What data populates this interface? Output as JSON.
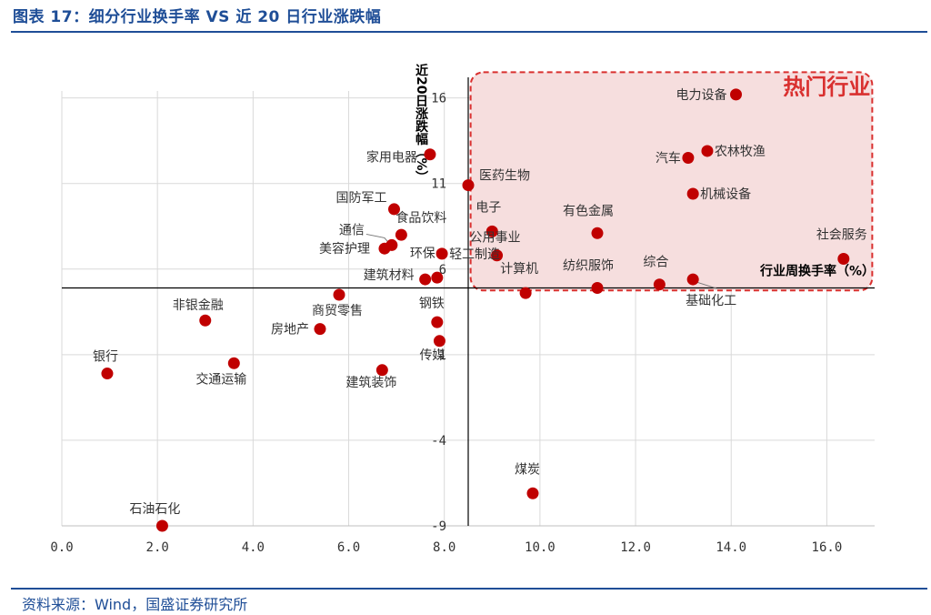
{
  "header": {
    "title": "图表 17：细分行业换手率 VS 近 20 日行业涨跌幅"
  },
  "footer": {
    "source": "资料来源：Wind，国盛证券研究所"
  },
  "colors": {
    "brand": "#1f4e97",
    "point": "#c00000",
    "hot_fill": "#f6dede",
    "hot_border": "#d9302f"
  },
  "chart_data": {
    "type": "scatter",
    "title": "",
    "xlabel": "行业周换手率（%）",
    "ylabel": "近20日涨跌幅（%）",
    "xlim": [
      0,
      17
    ],
    "ylim": [
      -9,
      18
    ],
    "x_ticks": [
      "0.0",
      "2.0",
      "4.0",
      "6.0",
      "8.0",
      "10.0",
      "12.0",
      "14.0",
      "16.0"
    ],
    "y_ticks": [
      "-9",
      "-4",
      "1",
      "6",
      "11",
      "16"
    ],
    "grid": true,
    "annotation": "热门行业",
    "points": [
      {
        "name": "电力设备",
        "x": 14.1,
        "y": 16.2
      },
      {
        "name": "农林牧渔",
        "x": 13.5,
        "y": 12.9
      },
      {
        "name": "汽车",
        "x": 13.1,
        "y": 12.5
      },
      {
        "name": "家用电器",
        "x": 7.7,
        "y": 12.7
      },
      {
        "name": "机械设备",
        "x": 13.2,
        "y": 10.4
      },
      {
        "name": "医药生物",
        "x": 8.5,
        "y": 10.9
      },
      {
        "name": "国防军工",
        "x": 6.95,
        "y": 9.5
      },
      {
        "name": "电子",
        "x": 9.0,
        "y": 8.2
      },
      {
        "name": "有色金属",
        "x": 11.2,
        "y": 8.1
      },
      {
        "name": "食品饮料",
        "x": 7.1,
        "y": 8.0
      },
      {
        "name": "通信",
        "x": 6.9,
        "y": 7.4
      },
      {
        "name": "轻工制造",
        "x": 7.95,
        "y": 6.9
      },
      {
        "name": "美容护理",
        "x": 6.75,
        "y": 7.2
      },
      {
        "name": "公用事业",
        "x": 9.1,
        "y": 6.8
      },
      {
        "name": "社会服务",
        "x": 16.35,
        "y": 6.6
      },
      {
        "name": "环保",
        "x": 7.85,
        "y": 5.5
      },
      {
        "name": "建筑材料",
        "x": 7.6,
        "y": 5.4
      },
      {
        "name": "综合",
        "x": 12.5,
        "y": 5.1
      },
      {
        "name": "基础化工",
        "x": 13.2,
        "y": 5.4
      },
      {
        "name": "纺织服饰",
        "x": 11.2,
        "y": 4.9
      },
      {
        "name": "计算机",
        "x": 9.7,
        "y": 4.6
      },
      {
        "name": "商贸零售",
        "x": 5.8,
        "y": 4.5
      },
      {
        "name": "非银金融",
        "x": 3.0,
        "y": 3.0
      },
      {
        "name": "房地产",
        "x": 5.4,
        "y": 2.5
      },
      {
        "name": "钢铁",
        "x": 7.85,
        "y": 2.9
      },
      {
        "name": "传媒",
        "x": 7.9,
        "y": 1.8
      },
      {
        "name": "交通运输",
        "x": 3.6,
        "y": 0.5
      },
      {
        "name": "银行",
        "x": 0.95,
        "y": -0.1
      },
      {
        "name": "建筑装饰",
        "x": 6.7,
        "y": 0.1
      },
      {
        "name": "煤炭",
        "x": 9.85,
        "y": -7.1
      },
      {
        "name": "石油石化",
        "x": 2.1,
        "y": -9.0
      }
    ]
  }
}
